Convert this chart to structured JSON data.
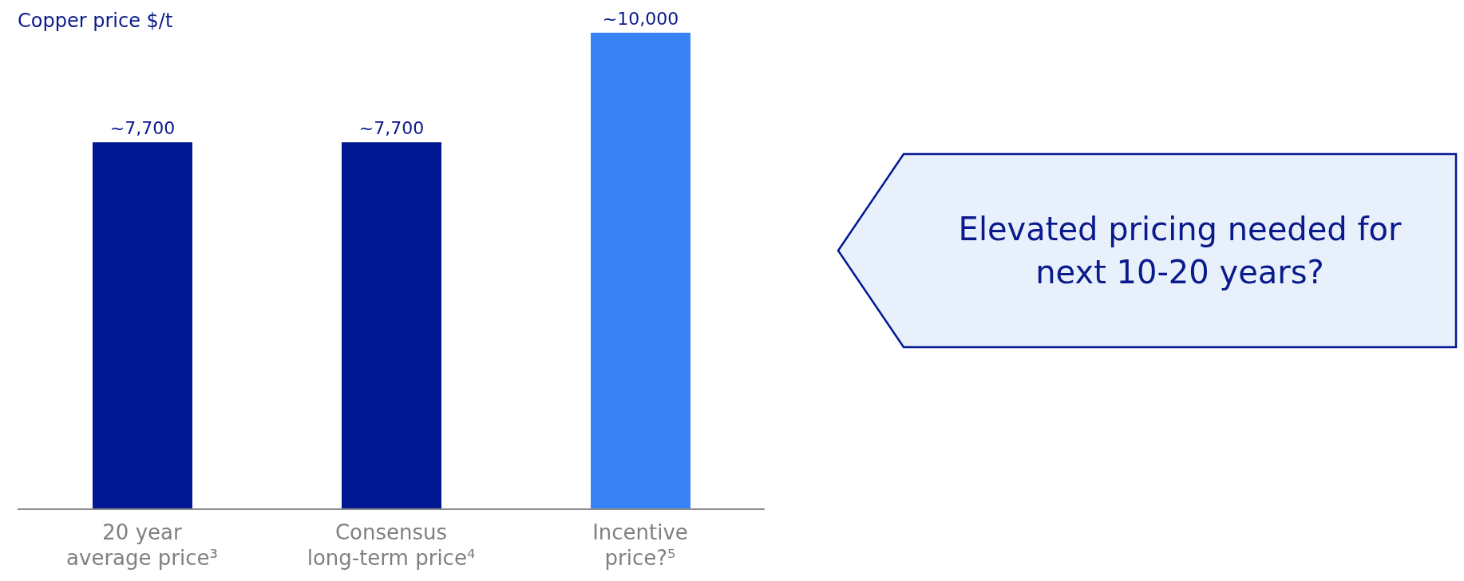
{
  "chart_data": {
    "type": "bar",
    "title": "Copper price $/t",
    "categories": [
      "20 year average price³",
      "Consensus long-term price⁴",
      "Incentive price?⁵"
    ],
    "values": [
      7700,
      7700,
      10000
    ],
    "value_labels": [
      "~7,700",
      "~7,700",
      "~10,000"
    ],
    "colors": [
      "#021893",
      "#021893",
      "#3882f6"
    ],
    "grid": false,
    "legend": false,
    "annotations": [
      "Elevated pricing needed for next 10-20 years?"
    ]
  }
}
